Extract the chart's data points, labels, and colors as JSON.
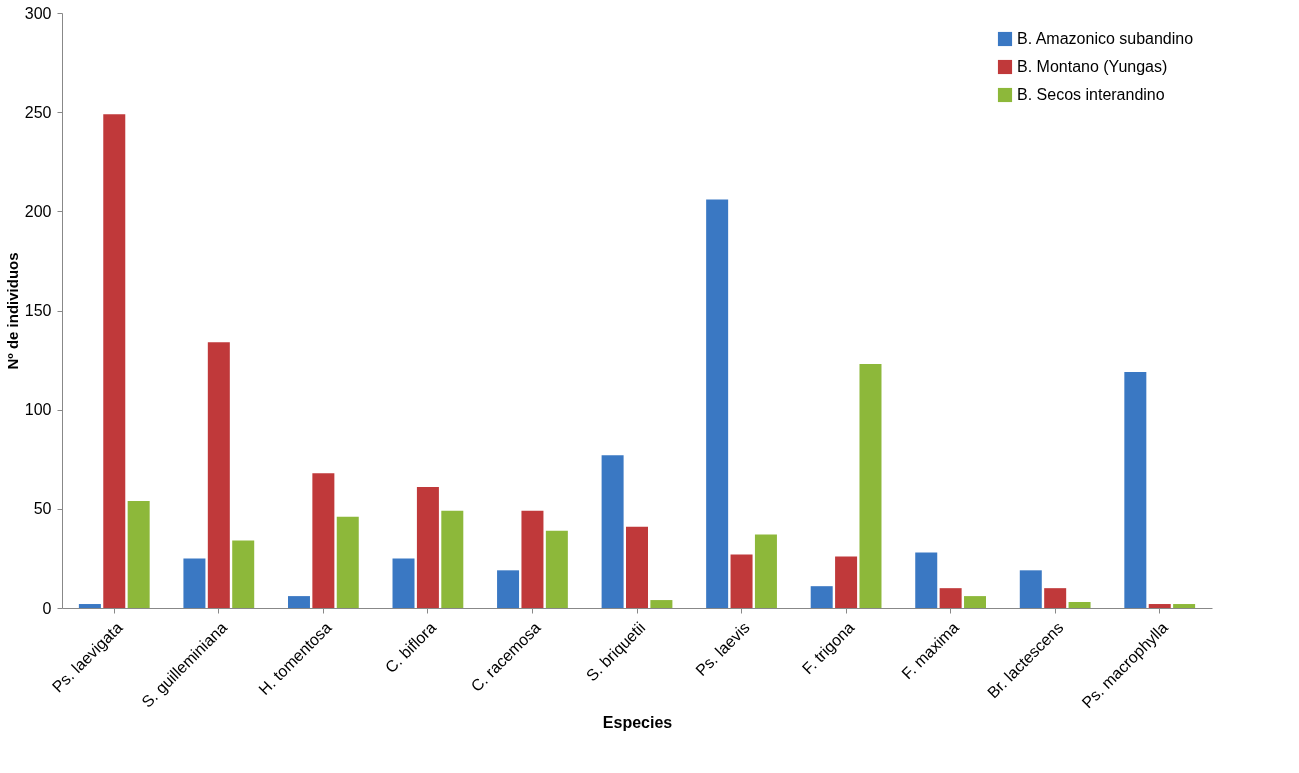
{
  "chart_data": {
    "type": "bar",
    "xlabel": "Especies",
    "ylabel": "Nº de individuos",
    "categories": [
      "Ps. laevigata",
      "S. guilleminiana",
      "H. tomentosa",
      "C. biflora",
      "C. racemosa",
      "S. briquetii",
      "Ps. laevis",
      "F. trigona",
      "F. maxima",
      "Br. lactescens",
      "Ps. macrophylla"
    ],
    "series": [
      {
        "name": "B. Amazonico subandino",
        "color": "#3a78c3",
        "values": [
          2,
          25,
          6,
          25,
          19,
          77,
          206,
          11,
          28,
          19,
          119
        ]
      },
      {
        "name": "B. Montano (Yungas)",
        "color": "#c0393a",
        "values": [
          249,
          134,
          68,
          61,
          49,
          41,
          27,
          26,
          10,
          10,
          2
        ]
      },
      {
        "name": "B. Secos interandino",
        "color": "#8db83a",
        "values": [
          54,
          34,
          46,
          49,
          39,
          4,
          37,
          123,
          6,
          3,
          2
        ]
      }
    ],
    "ylim": [
      0,
      300
    ],
    "yticks": [
      0,
      50,
      100,
      150,
      200,
      250,
      300
    ],
    "grid": false,
    "legend": "top right"
  }
}
